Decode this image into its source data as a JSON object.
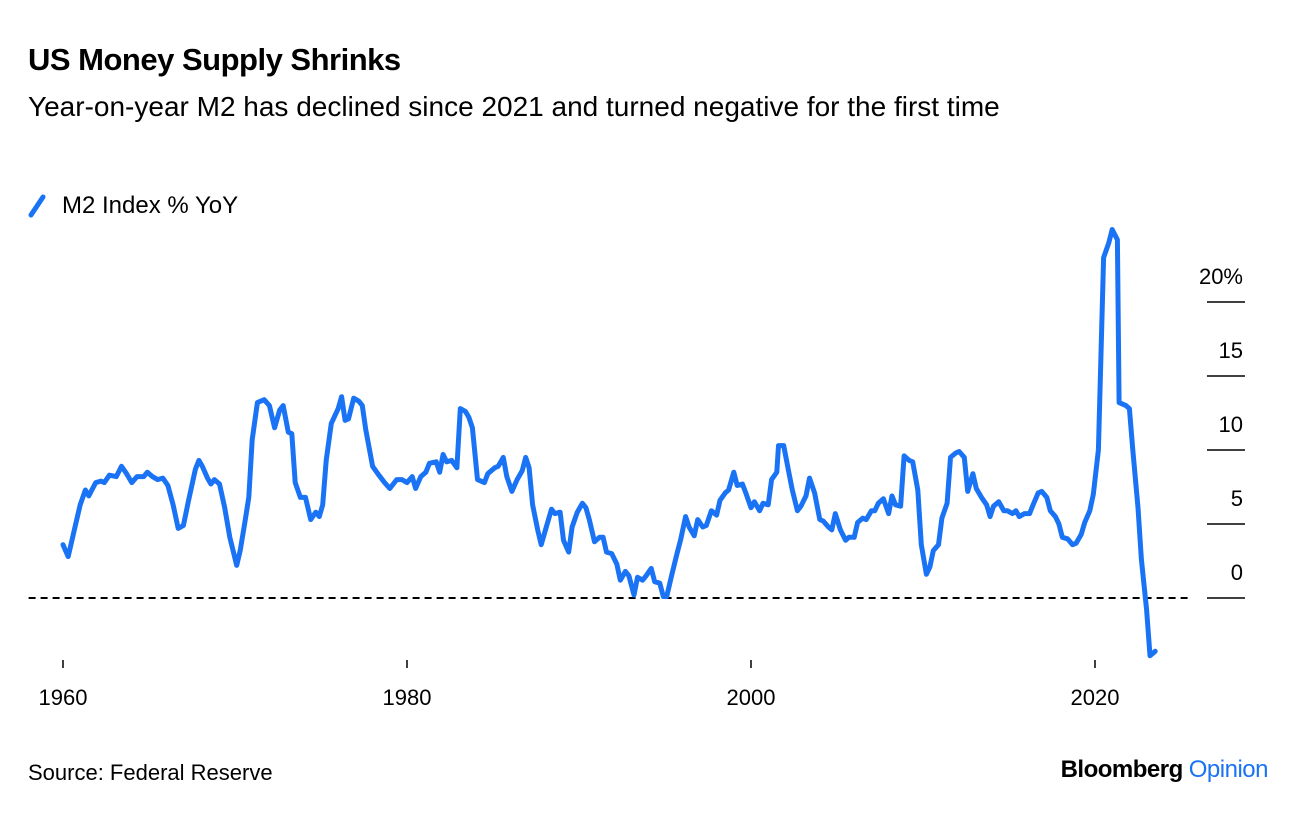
{
  "chart_data": {
    "type": "line",
    "title": "US Money Supply Shrinks",
    "subtitle": "Year-on-year M2 has declined since 2021 and turned negative for the first time",
    "source": "Source: Federal Reserve",
    "credit": "Bloomberg",
    "credit_suffix": "Opinion",
    "xlim": [
      1958,
      2027
    ],
    "xticks": [
      1960,
      1980,
      2000,
      2020
    ],
    "ylim": [
      -5,
      25
    ],
    "yticks": [
      0,
      5,
      10,
      15,
      {
        "value": 20,
        "label": "20%"
      }
    ],
    "grid": true,
    "legend": "top-left",
    "series": [
      {
        "name": "M2 Index % YoY",
        "color": "#1a73f5",
        "x": [
          1960.0,
          1960.3,
          1960.7,
          1961.0,
          1961.3,
          1961.5,
          1961.9,
          1962.2,
          1962.4,
          1962.7,
          1963.1,
          1963.4,
          1963.7,
          1964.0,
          1964.3,
          1964.7,
          1964.9,
          1965.2,
          1965.5,
          1965.8,
          1966.1,
          1966.4,
          1966.7,
          1967.0,
          1967.3,
          1967.7,
          1967.9,
          1968.1,
          1968.4,
          1968.6,
          1968.8,
          1969.1,
          1969.4,
          1969.7,
          1970.1,
          1970.3,
          1970.6,
          1970.8,
          1971.0,
          1971.3,
          1971.7,
          1972.0,
          1972.3,
          1972.6,
          1972.8,
          1973.1,
          1973.3,
          1973.5,
          1973.8,
          1974.1,
          1974.4,
          1974.7,
          1974.9,
          1975.1,
          1975.3,
          1975.6,
          1976.0,
          1976.2,
          1976.4,
          1976.6,
          1976.9,
          1977.2,
          1977.4,
          1977.6,
          1978.0,
          1978.3,
          1978.7,
          1979.0,
          1979.4,
          1979.7,
          1980.0,
          1980.3,
          1980.5,
          1980.8,
          1981.1,
          1981.3,
          1981.7,
          1981.9,
          1982.1,
          1982.3,
          1982.6,
          1982.9,
          1983.1,
          1983.4,
          1983.6,
          1983.8,
          1984.1,
          1984.5,
          1984.7,
          1985.1,
          1985.3,
          1985.6,
          1985.8,
          1986.1,
          1986.4,
          1986.7,
          1986.9,
          1987.1,
          1987.3,
          1987.6,
          1987.8,
          1988.1,
          1988.4,
          1988.6,
          1988.9,
          1989.1,
          1989.4,
          1989.6,
          1989.9,
          1990.2,
          1990.4,
          1990.6,
          1990.9,
          1991.2,
          1991.4,
          1991.6,
          1991.9,
          1992.2,
          1992.4,
          1992.7,
          1992.9,
          1993.2,
          1993.4,
          1993.7,
          1993.9,
          1994.2,
          1994.4,
          1994.7,
          1994.9,
          1995.1,
          1995.4,
          1995.7,
          1995.9,
          1996.2,
          1996.4,
          1996.7,
          1996.9,
          1997.2,
          1997.4,
          1997.7,
          1998.0,
          1998.2,
          1998.5,
          1998.7,
          1999.0,
          1999.2,
          1999.5,
          1999.7,
          2000.0,
          2000.2,
          2000.5,
          2000.7,
          2001.0,
          2001.2,
          2001.5,
          2001.6,
          2001.9,
          2002.2,
          2002.4,
          2002.7,
          2002.9,
          2003.2,
          2003.4,
          2003.7,
          2004.0,
          2004.2,
          2004.5,
          2004.7,
          2004.9,
          2005.2,
          2005.5,
          2005.7,
          2006.0,
          2006.2,
          2006.5,
          2006.7,
          2007.0,
          2007.2,
          2007.4,
          2007.7,
          2008.0,
          2008.2,
          2008.4,
          2008.7,
          2008.9,
          2009.2,
          2009.4,
          2009.7,
          2009.9,
          2010.2,
          2010.4,
          2010.6,
          2010.9,
          2011.1,
          2011.4,
          2011.6,
          2011.9,
          2012.1,
          2012.4,
          2012.6,
          2012.9,
          2013.1,
          2013.4,
          2013.7,
          2013.9,
          2014.1,
          2014.4,
          2014.7,
          2014.9,
          2015.2,
          2015.4,
          2015.6,
          2015.9,
          2016.2,
          2016.4,
          2016.7,
          2016.9,
          2017.2,
          2017.4,
          2017.7,
          2017.9,
          2018.1,
          2018.4,
          2018.7,
          2018.9,
          2019.2,
          2019.4,
          2019.7,
          2019.9,
          2020.2,
          2020.5,
          2020.8,
          2021.0,
          2021.3,
          2021.4,
          2021.8,
          2022.0,
          2022.2,
          2022.5,
          2022.7,
          2023.0,
          2023.2,
          2023.5
        ],
        "values": [
          3.6,
          2.8,
          4.8,
          6.3,
          7.3,
          6.9,
          7.8,
          7.9,
          7.8,
          8.3,
          8.2,
          8.9,
          8.4,
          7.8,
          8.2,
          8.2,
          8.5,
          8.2,
          8.0,
          8.1,
          7.6,
          6.3,
          4.7,
          4.9,
          6.6,
          8.7,
          9.3,
          8.9,
          8.1,
          7.7,
          8.0,
          7.7,
          6.1,
          4.1,
          2.2,
          3.2,
          5.3,
          6.8,
          10.7,
          13.2,
          13.4,
          13.0,
          11.5,
          12.7,
          13.0,
          11.2,
          11.1,
          7.8,
          6.8,
          6.8,
          5.3,
          5.8,
          5.5,
          6.3,
          9.3,
          11.8,
          12.8,
          13.6,
          12.0,
          12.1,
          13.5,
          13.3,
          13.0,
          11.4,
          8.9,
          8.4,
          7.8,
          7.4,
          8.0,
          8.0,
          7.8,
          8.2,
          7.4,
          8.2,
          8.5,
          9.1,
          9.2,
          8.5,
          9.7,
          9.2,
          9.3,
          8.8,
          12.8,
          12.6,
          12.2,
          11.5,
          8.0,
          7.8,
          8.4,
          8.8,
          8.9,
          9.5,
          8.2,
          7.2,
          8.0,
          8.6,
          9.5,
          8.8,
          6.3,
          4.6,
          3.6,
          4.8,
          6.0,
          5.7,
          5.8,
          3.9,
          3.1,
          4.8,
          5.8,
          6.4,
          6.1,
          5.3,
          3.8,
          4.1,
          4.1,
          3.1,
          3.0,
          2.3,
          1.2,
          1.8,
          1.5,
          0.2,
          1.4,
          1.2,
          1.5,
          2.0,
          1.1,
          1.0,
          0.1,
          0.1,
          1.6,
          3.0,
          3.9,
          5.5,
          4.8,
          4.2,
          5.3,
          4.8,
          4.9,
          5.9,
          5.6,
          6.6,
          7.1,
          7.3,
          8.5,
          7.6,
          7.7,
          7.1,
          6.1,
          6.5,
          5.9,
          6.4,
          6.3,
          8.0,
          8.5,
          10.3,
          10.3,
          8.5,
          7.3,
          5.9,
          6.2,
          6.9,
          8.1,
          7.1,
          5.3,
          5.2,
          4.8,
          4.6,
          5.7,
          4.6,
          3.9,
          4.1,
          4.1,
          5.1,
          5.4,
          5.3,
          5.9,
          5.9,
          6.4,
          6.7,
          5.7,
          6.9,
          6.3,
          6.2,
          9.6,
          9.3,
          9.2,
          7.3,
          3.6,
          1.6,
          2.1,
          3.2,
          3.6,
          5.4,
          6.4,
          9.5,
          9.8,
          9.9,
          9.5,
          7.2,
          8.4,
          7.4,
          6.8,
          6.3,
          5.5,
          6.2,
          6.5,
          5.9,
          5.9,
          5.7,
          5.9,
          5.5,
          5.7,
          5.7,
          6.3,
          7.1,
          7.2,
          6.8,
          5.9,
          5.5,
          5.0,
          4.1,
          4.0,
          3.6,
          3.7,
          4.3,
          5.1,
          5.9,
          7.0,
          10.0,
          23.0,
          24.0,
          24.9,
          24.2,
          13.2,
          13.0,
          12.8,
          10.0,
          6.1,
          2.6,
          -0.8,
          -3.9,
          -3.6
        ]
      }
    ]
  }
}
